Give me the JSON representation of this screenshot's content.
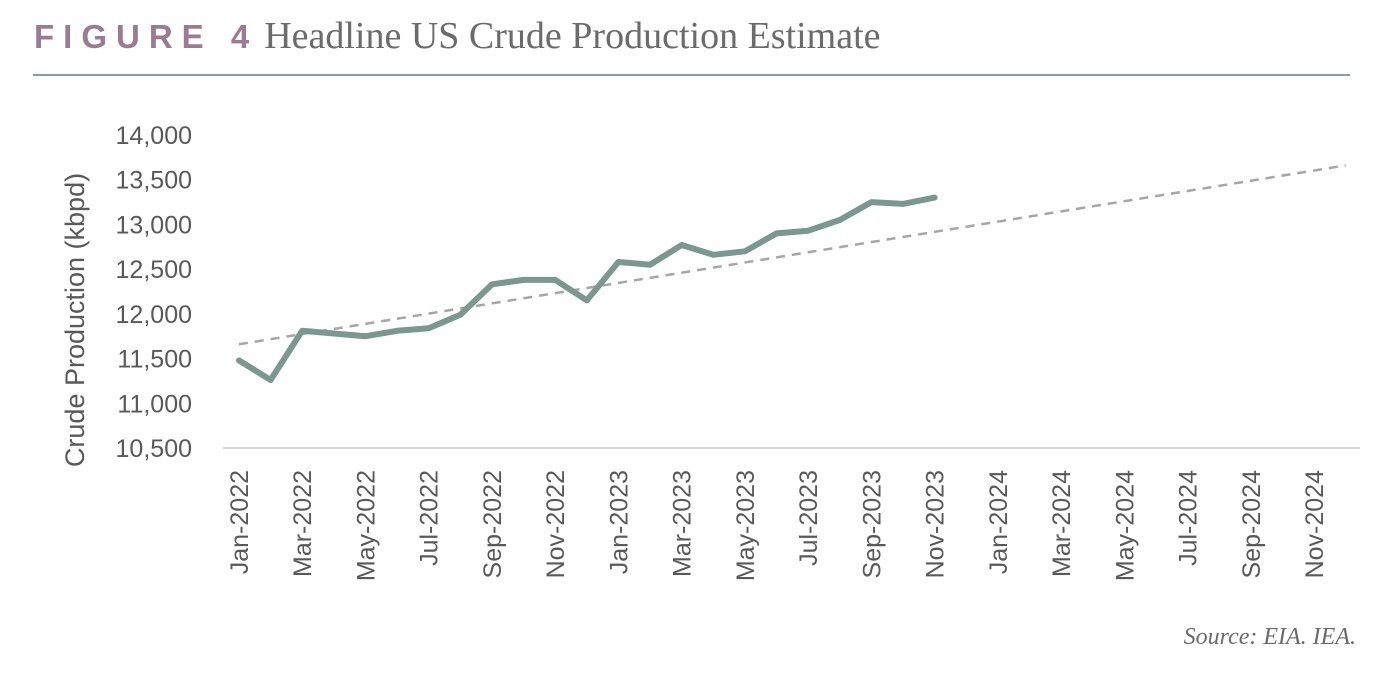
{
  "figure": {
    "label": "FIGURE 4",
    "title": "Headline US Crude Production Estimate",
    "source": "Source: EIA. IEA."
  },
  "colors": {
    "label": "#9b7b93",
    "series": "#7a9890",
    "trend": "#a6a6a6",
    "axis": "#d9d9d9"
  },
  "chart_data": {
    "type": "line",
    "ylabel": "Crude Production (kbpd)",
    "xlabel": "",
    "ylim": [
      10500,
      14000
    ],
    "yticks": [
      10500,
      11000,
      11500,
      12000,
      12500,
      13000,
      13500,
      14000
    ],
    "ytick_labels": [
      "10,500",
      "11,000",
      "11,500",
      "12,000",
      "12,500",
      "13,000",
      "13,500",
      "14,000"
    ],
    "x_months": [
      "Jan-2022",
      "Feb-2022",
      "Mar-2022",
      "Apr-2022",
      "May-2022",
      "Jun-2022",
      "Jul-2022",
      "Aug-2022",
      "Sep-2022",
      "Oct-2022",
      "Nov-2022",
      "Dec-2022",
      "Jan-2023",
      "Feb-2023",
      "Mar-2023",
      "Apr-2023",
      "May-2023",
      "Jun-2023",
      "Jul-2023",
      "Aug-2023",
      "Sep-2023",
      "Oct-2023",
      "Nov-2023",
      "Dec-2023",
      "Jan-2024",
      "Feb-2024",
      "Mar-2024",
      "Apr-2024",
      "May-2024",
      "Jun-2024",
      "Jul-2024",
      "Aug-2024",
      "Sep-2024",
      "Oct-2024",
      "Nov-2024",
      "Dec-2024"
    ],
    "xtick_labels": [
      "Jan-2022",
      "Mar-2022",
      "May-2022",
      "Jul-2022",
      "Sep-2022",
      "Nov-2022",
      "Jan-2023",
      "Mar-2023",
      "May-2023",
      "Jul-2023",
      "Sep-2023",
      "Nov-2023",
      "Jan-2024",
      "Mar-2024",
      "May-2024",
      "Jul-2024",
      "Sep-2024",
      "Nov-2024"
    ],
    "series": [
      {
        "style": "solid",
        "values": [
          11480,
          11260,
          11810,
          11780,
          11750,
          11810,
          11840,
          11990,
          12330,
          12380,
          12380,
          12150,
          12580,
          12550,
          12770,
          12660,
          12700,
          12900,
          12930,
          13050,
          13250,
          13230,
          13300
        ]
      },
      {
        "style": "dashed",
        "trend_start": [
          "Jan-2022",
          11660
        ],
        "trend_end": [
          "Dec-2024",
          13660
        ]
      }
    ],
    "grid": false,
    "legend": "none"
  }
}
